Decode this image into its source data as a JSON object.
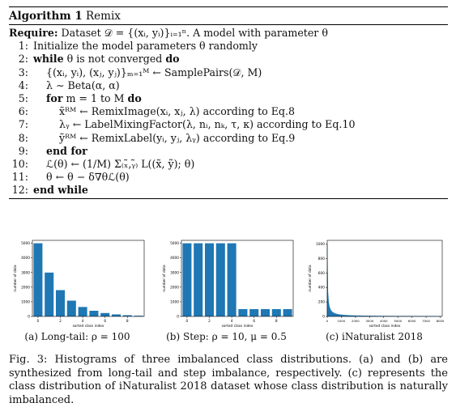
{
  "algorithm": {
    "title_prefix": "Algorithm 1",
    "title_name": "Remix",
    "require_label": "Require:",
    "require_text": "Dataset 𝒟 = {(xᵢ, yᵢ)}ᵢ₌₁ⁿ. A model with parameter θ",
    "lines": [
      {
        "n": "1:",
        "indent": 0,
        "kw": "",
        "text": "Initialize the model parameters θ randomly"
      },
      {
        "n": "2:",
        "indent": 0,
        "kw": "while",
        "text": "θ is not converged",
        "kw2": "do"
      },
      {
        "n": "3:",
        "indent": 1,
        "kw": "",
        "text": "{(xᵢ, yᵢ), (xⱼ, yⱼ)}ₘ₌₁ᴹ ← SamplePairs(𝒟, M)"
      },
      {
        "n": "4:",
        "indent": 1,
        "kw": "",
        "text": "λ ∼ Beta(α, α)"
      },
      {
        "n": "5:",
        "indent": 1,
        "kw": "for",
        "text": "m = 1 to M",
        "kw2": "do"
      },
      {
        "n": "6:",
        "indent": 2,
        "kw": "",
        "text": "x̃ᴿᴹ ← RemixImage(xᵢ, xⱼ, λ) according to Eq.8"
      },
      {
        "n": "7:",
        "indent": 2,
        "kw": "",
        "text": "λᵧ ← LabelMixingFactor(λ, nᵢ, nₖ, τ, κ) according to Eq.10"
      },
      {
        "n": "8:",
        "indent": 2,
        "kw": "",
        "text": "ỹᴿᴹ ← RemixLabel(yᵢ, yⱼ, λᵧ) according to Eq.9"
      },
      {
        "n": "9:",
        "indent": 1,
        "kw": "end for",
        "text": ""
      },
      {
        "n": "10:",
        "indent": 1,
        "kw": "",
        "text": "ℒ(θ) ← (1/M) Σ₍ₓ̃,ᵧ̃₎ L((x̃, ỹ); θ)"
      },
      {
        "n": "11:",
        "indent": 1,
        "kw": "",
        "text": "θ ← θ − δ∇θℒ(θ)"
      },
      {
        "n": "12:",
        "indent": 0,
        "kw": "end while",
        "text": ""
      }
    ]
  },
  "chart_data": [
    {
      "type": "bar",
      "categories": [
        0,
        1,
        2,
        3,
        4,
        5,
        6,
        7,
        8,
        9
      ],
      "values": [
        5000,
        2997,
        1796,
        1077,
        645,
        387,
        232,
        139,
        83,
        50
      ],
      "xlabel": "sorted class index",
      "ylabel": "number of data",
      "ylim": [
        0,
        5200
      ],
      "yticks": [
        "0",
        "1000",
        "2000",
        "3000",
        "4000",
        "5000"
      ],
      "xticks": [
        "0",
        "2",
        "4",
        "6",
        "8"
      ],
      "caption": "(a) Long-tail: ρ = 100"
    },
    {
      "type": "bar",
      "categories": [
        0,
        1,
        2,
        3,
        4,
        5,
        6,
        7,
        8,
        9
      ],
      "values": [
        5000,
        5000,
        5000,
        5000,
        5000,
        500,
        500,
        500,
        500,
        500
      ],
      "xlabel": "sorted class index",
      "ylabel": "number of data",
      "ylim": [
        0,
        5200
      ],
      "yticks": [
        "0",
        "1000",
        "2000",
        "3000",
        "4000",
        "5000"
      ],
      "xticks": [
        "0",
        "2",
        "4",
        "6",
        "8"
      ],
      "caption": "(b) Step: ρ = 10, μ = 0.5"
    },
    {
      "type": "area",
      "xlabel": "sorted class index",
      "ylabel": "number of data",
      "xlim": [
        0,
        8142
      ],
      "ylim": [
        0,
        1050
      ],
      "ymax_value": 1000,
      "ymin_value": 2,
      "yticks": [
        "0",
        "200",
        "400",
        "600",
        "800",
        "1000"
      ],
      "xticks": [
        "0",
        "1000",
        "2000",
        "3000",
        "4000",
        "5000",
        "6000",
        "7000",
        "8000"
      ],
      "caption": "(c) iNaturalist 2018"
    }
  ],
  "colors": {
    "bar": "#1f77b4"
  },
  "figure_caption": "Fig. 3: Histograms of three imbalanced class distributions. (a) and (b) are synthesized from long-tail and step imbalance, respectively. (c) represents the class distribution of iNaturalist 2018 dataset whose class distribution is naturally imbalanced."
}
